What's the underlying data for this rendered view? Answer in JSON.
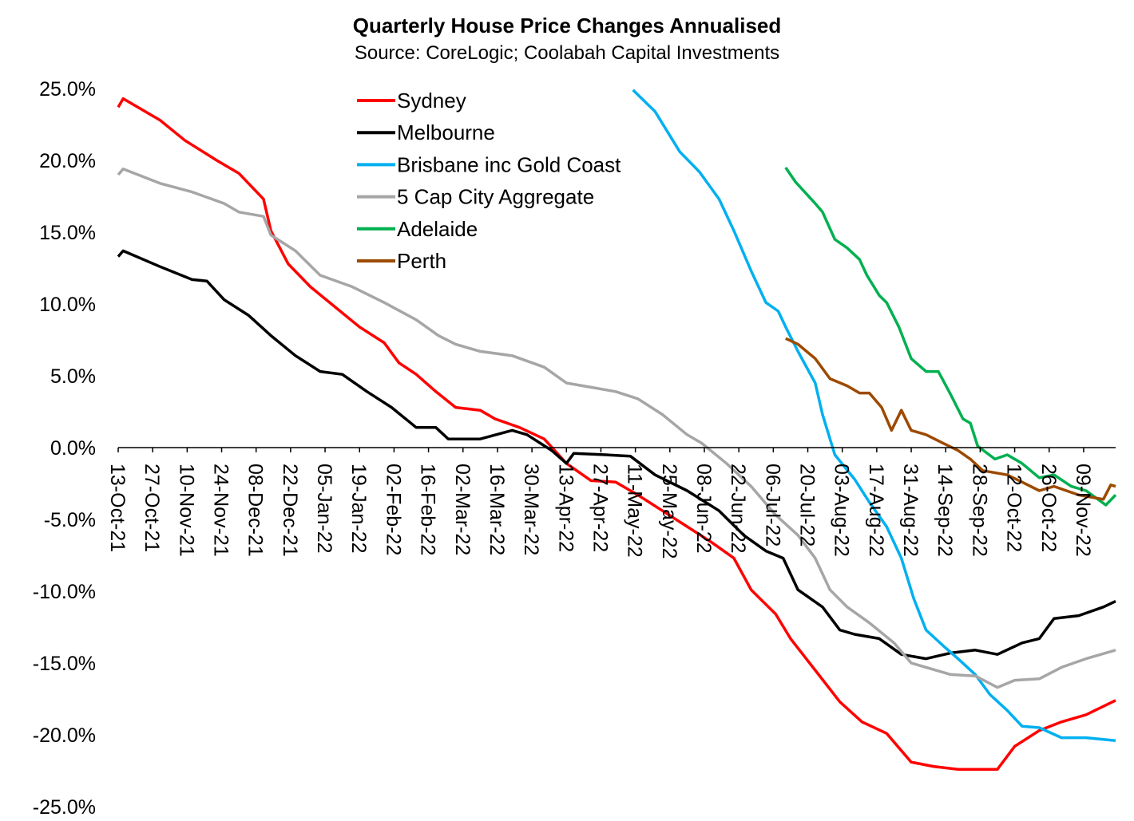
{
  "chart_data": {
    "type": "line",
    "title": "Quarterly House Price Changes Annualised",
    "subtitle": "Source: CoreLogic; Coolabah Capital Investments",
    "xlabel": "",
    "ylabel": "",
    "x_unit": "days since 13-Oct-21",
    "xlim": [
      0,
      405
    ],
    "ylim": [
      -25,
      25
    ],
    "y_ticks": [
      25,
      20,
      15,
      10,
      5,
      0,
      -5,
      -10,
      -15,
      -20,
      -25
    ],
    "y_tick_labels": [
      "25.0%",
      "20.0%",
      "15.0%",
      "10.0%",
      "5.0%",
      "0.0%",
      "-5.0%",
      "-10.0%",
      "-15.0%",
      "-20.0%",
      "-25.0%"
    ],
    "x_tick_labels": [
      "13-Oct-21",
      "27-Oct-21",
      "10-Nov-21",
      "24-Nov-21",
      "08-Dec-21",
      "22-Dec-21",
      "05-Jan-22",
      "19-Jan-22",
      "02-Feb-22",
      "16-Feb-22",
      "02-Mar-22",
      "16-Mar-22",
      "30-Mar-22",
      "13-Apr-22",
      "27-Apr-22",
      "11-May-22",
      "25-May-22",
      "08-Jun-22",
      "22-Jun-22",
      "06-Jul-22",
      "20-Jul-22",
      "03-Aug-22",
      "17-Aug-22",
      "31-Aug-22",
      "14-Sep-22",
      "28-Sep-22",
      "12-Oct-22",
      "26-Oct-22",
      "09-Nov-22"
    ],
    "x_tick_interval_days": 14,
    "grid": false,
    "legend_position": "top-center",
    "series": [
      {
        "name": "Sydney",
        "color": "#ff0000",
        "x": [
          0,
          2,
          17,
          27,
          40,
          49,
          59,
          62,
          69,
          78,
          88,
          98,
          108,
          114,
          121,
          129,
          137,
          147,
          153,
          163,
          173,
          182,
          192,
          202,
          211,
          221,
          231,
          241,
          250,
          257,
          267,
          273,
          283,
          293,
          302,
          312,
          322,
          331,
          341,
          351,
          357,
          364,
          374,
          383,
          393,
          405
        ],
        "y": [
          23.7,
          24.3,
          22.8,
          21.4,
          20.0,
          19.1,
          17.3,
          15.1,
          12.8,
          11.2,
          9.8,
          8.4,
          7.3,
          5.9,
          5.1,
          3.9,
          2.8,
          2.6,
          2.0,
          1.4,
          0.6,
          -1.1,
          -2.3,
          -2.4,
          -3.3,
          -4.4,
          -5.5,
          -6.6,
          -7.7,
          -9.9,
          -11.6,
          -13.3,
          -15.5,
          -17.7,
          -19.1,
          -19.9,
          -21.9,
          -22.2,
          -22.4,
          -22.4,
          -22.4,
          -20.8,
          -19.7,
          -19.1,
          -18.6,
          -17.6
        ]
      },
      {
        "name": "Melbourne",
        "color": "#000000",
        "x": [
          0,
          2,
          17,
          30,
          36,
          43,
          53,
          62,
          72,
          82,
          91,
          101,
          111,
          121,
          129,
          134,
          147,
          160,
          166,
          176,
          182,
          185,
          198,
          208,
          218,
          231,
          244,
          254,
          263,
          270,
          276,
          286,
          293,
          299,
          309,
          318,
          328,
          338,
          348,
          357,
          367,
          374,
          380,
          390,
          400,
          405
        ],
        "y": [
          13.3,
          13.7,
          12.6,
          11.7,
          11.6,
          10.3,
          9.2,
          7.8,
          6.4,
          5.3,
          5.1,
          3.9,
          2.8,
          1.4,
          1.4,
          0.6,
          0.6,
          1.2,
          0.9,
          -0.2,
          -1.1,
          -0.4,
          -0.5,
          -0.6,
          -1.9,
          -3.0,
          -4.4,
          -6.1,
          -7.2,
          -7.7,
          -9.9,
          -11.1,
          -12.7,
          -13.0,
          -13.3,
          -14.4,
          -14.7,
          -14.3,
          -14.1,
          -14.4,
          -13.6,
          -13.3,
          -11.9,
          -11.7,
          -11.1,
          -10.7
        ]
      },
      {
        "name": "Brisbane inc Gold Coast",
        "color": "#00b0f0",
        "x": [
          209,
          218,
          228,
          236,
          244,
          250,
          257,
          263,
          268,
          271,
          276,
          283,
          286,
          291,
          299,
          305,
          312,
          318,
          323,
          328,
          335,
          341,
          348,
          354,
          361,
          367,
          374,
          383,
          393,
          405
        ],
        "y": [
          24.9,
          23.4,
          20.6,
          19.2,
          17.3,
          15.1,
          12.3,
          10.1,
          9.5,
          8.4,
          6.7,
          4.5,
          2.3,
          -0.5,
          -2.2,
          -3.8,
          -5.5,
          -7.7,
          -10.5,
          -12.7,
          -13.8,
          -14.7,
          -15.8,
          -17.2,
          -18.3,
          -19.4,
          -19.5,
          -20.2,
          -20.2,
          -20.4
        ]
      },
      {
        "name": "5 Cap City Aggregate",
        "color": "#a6a6a6",
        "x": [
          0,
          2,
          17,
          30,
          43,
          49,
          59,
          62,
          72,
          82,
          95,
          108,
          121,
          130,
          137,
          147,
          160,
          173,
          182,
          192,
          202,
          211,
          221,
          231,
          237,
          247,
          257,
          267,
          276,
          283,
          289,
          296,
          305,
          315,
          322,
          328,
          338,
          348,
          357,
          364,
          374,
          383,
          393,
          405
        ],
        "y": [
          19.0,
          19.4,
          18.4,
          17.8,
          17.0,
          16.4,
          16.1,
          14.8,
          13.7,
          12.0,
          11.2,
          10.1,
          8.9,
          7.8,
          7.2,
          6.7,
          6.4,
          5.6,
          4.5,
          4.2,
          3.9,
          3.4,
          2.3,
          0.9,
          0.3,
          -1.1,
          -2.7,
          -4.7,
          -6.1,
          -7.7,
          -9.9,
          -11.1,
          -12.2,
          -13.6,
          -15.0,
          -15.3,
          -15.8,
          -15.9,
          -16.7,
          -16.2,
          -16.1,
          -15.3,
          -14.7,
          -14.1
        ]
      },
      {
        "name": "Adelaide",
        "color": "#00b050",
        "x": [
          271,
          275,
          283,
          286,
          291,
          296,
          301,
          304,
          309,
          312,
          317,
          322,
          328,
          333,
          338,
          343,
          346,
          349,
          356,
          361,
          367,
          374,
          380,
          387,
          393,
          401,
          405
        ],
        "y": [
          19.5,
          18.5,
          17.0,
          16.4,
          14.5,
          13.9,
          13.1,
          12.0,
          10.6,
          10.1,
          8.4,
          6.2,
          5.3,
          5.3,
          3.7,
          2.0,
          1.7,
          0.1,
          -0.8,
          -0.5,
          -1.1,
          -2.1,
          -1.9,
          -2.7,
          -3.0,
          -4.0,
          -3.3
        ]
      },
      {
        "name": "Perth",
        "color": "#9c4a00",
        "x": [
          271,
          276,
          283,
          289,
          296,
          301,
          305,
          310,
          314,
          318,
          322,
          328,
          335,
          341,
          346,
          351,
          361,
          367,
          374,
          380,
          390,
          400,
          403,
          405
        ],
        "y": [
          7.6,
          7.2,
          6.2,
          4.8,
          4.3,
          3.8,
          3.8,
          2.8,
          1.2,
          2.6,
          1.2,
          0.9,
          0.3,
          -0.2,
          -0.8,
          -1.6,
          -1.9,
          -2.4,
          -3.0,
          -2.7,
          -3.3,
          -3.6,
          -2.6,
          -2.7
        ]
      }
    ]
  }
}
